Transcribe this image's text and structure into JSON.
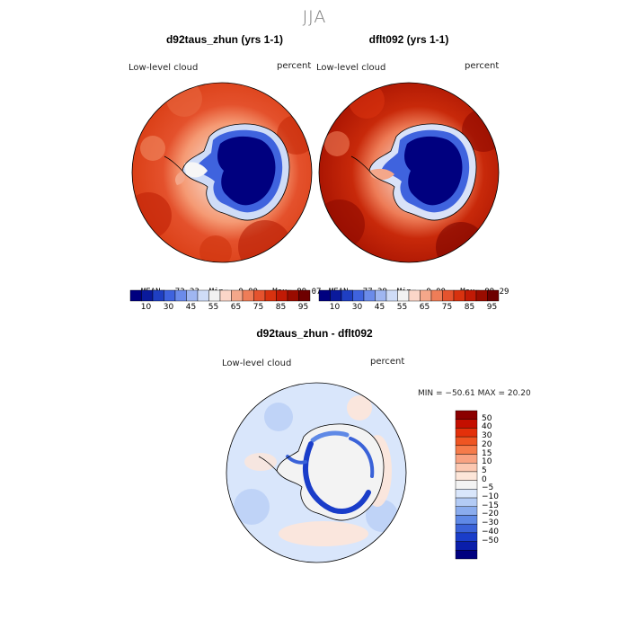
{
  "season": "JJA",
  "panels": [
    {
      "title": "d92taus_zhun (yrs 1-1)",
      "variable": "Low-level cloud",
      "units": "percent",
      "stats": {
        "mean_label": "MEAN=",
        "mean": "73.23",
        "min_label": "Min=",
        "min": "0.00",
        "max_label": "Max=",
        "max": "99.07"
      }
    },
    {
      "title": "dflt092 (yrs 1-1)",
      "variable": "Low-level cloud",
      "units": "percent",
      "stats": {
        "mean_label": "MEAN=",
        "mean": "77.39",
        "min_label": "Min=",
        "min": "0.00",
        "max_label": "Max=",
        "max": "99.29"
      }
    }
  ],
  "colorbar_top": {
    "colors": [
      "#00007f",
      "#0a1a9c",
      "#1f3fc2",
      "#3f63de",
      "#6b8bea",
      "#9fb6f1",
      "#cfdcf7",
      "#f2f2f2",
      "#fbd6c8",
      "#f4a78a",
      "#ee7d58",
      "#e5532e",
      "#d8320f",
      "#c11a05",
      "#9a0c00",
      "#6e0000"
    ],
    "tick_labels": [
      "10",
      "30",
      "45",
      "55",
      "65",
      "75",
      "85",
      "95"
    ]
  },
  "diff_panel": {
    "title": "d92taus_zhun - dflt092",
    "variable": "Low-level cloud",
    "units": "percent",
    "minmax": "MIN = −50.61  MAX =  20.20"
  },
  "colorbar_diff": {
    "colors": [
      "#8b0000",
      "#c40f00",
      "#e3300a",
      "#ef5522",
      "#f67b4a",
      "#f9a281",
      "#fcc8b1",
      "#fde6d9",
      "#f3f3f3",
      "#d9e6fb",
      "#b3cbf5",
      "#8aacee",
      "#5f89e6",
      "#3a62d8",
      "#1a3dc9",
      "#0a1eaa",
      "#00007f"
    ],
    "tick_labels": [
      "50",
      "40",
      "30",
      "20",
      "15",
      "10",
      "5",
      "0",
      "−5",
      "−10",
      "−15",
      "−20",
      "−30",
      "−40",
      "−50"
    ]
  }
}
